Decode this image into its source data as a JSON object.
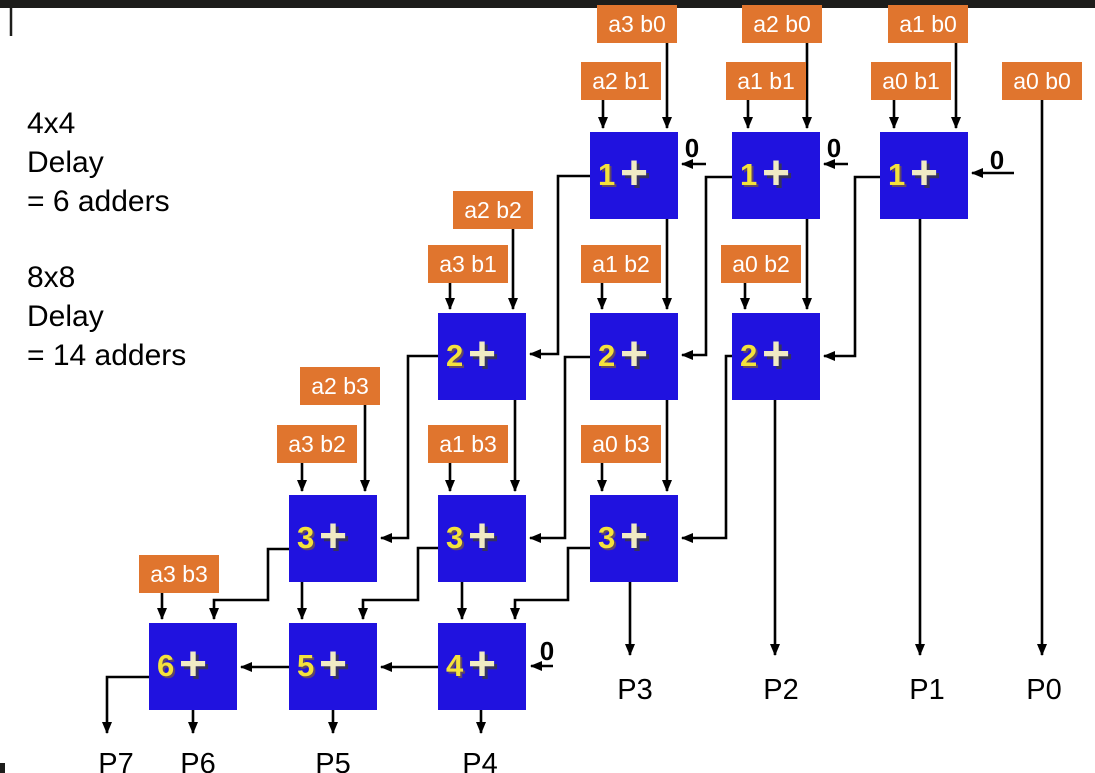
{
  "side_notes": [
    {
      "lines": [
        "4x4",
        "Delay",
        "= 6 adders"
      ]
    },
    {
      "lines": [
        "8x8",
        "Delay",
        "= 14 adders"
      ]
    }
  ],
  "partial_products": [
    {
      "id": "a3b0",
      "label": "a3 b0"
    },
    {
      "id": "a2b0",
      "label": "a2 b0"
    },
    {
      "id": "a1b0",
      "label": "a1 b0"
    },
    {
      "id": "a2b1",
      "label": "a2 b1"
    },
    {
      "id": "a1b1",
      "label": "a1 b1"
    },
    {
      "id": "a0b1",
      "label": "a0 b1"
    },
    {
      "id": "a0b0",
      "label": "a0 b0"
    },
    {
      "id": "a2b2",
      "label": "a2 b2"
    },
    {
      "id": "a3b1",
      "label": "a3 b1"
    },
    {
      "id": "a1b2",
      "label": "a1 b2"
    },
    {
      "id": "a0b2",
      "label": "a0 b2"
    },
    {
      "id": "a2b3",
      "label": "a2 b3"
    },
    {
      "id": "a3b2",
      "label": "a3 b2"
    },
    {
      "id": "a1b3",
      "label": "a1 b3"
    },
    {
      "id": "a0b3",
      "label": "a0 b3"
    },
    {
      "id": "a3b3",
      "label": "a3 b3"
    }
  ],
  "adders": [
    {
      "id": "r1-left",
      "number": "1"
    },
    {
      "id": "r1-mid",
      "number": "1"
    },
    {
      "id": "r1-right",
      "number": "1"
    },
    {
      "id": "r2-left",
      "number": "2"
    },
    {
      "id": "r2-mid",
      "number": "2"
    },
    {
      "id": "r2-right",
      "number": "2"
    },
    {
      "id": "r3-left",
      "number": "3"
    },
    {
      "id": "r3-mid",
      "number": "3"
    },
    {
      "id": "r3-right",
      "number": "3"
    },
    {
      "id": "r4-left",
      "number": "6"
    },
    {
      "id": "r4-mid",
      "number": "5"
    },
    {
      "id": "r4-right",
      "number": "4"
    }
  ],
  "adder_plus_sign": "+",
  "carry_zeros": [
    {
      "id": "cin-row1-left",
      "label": "0"
    },
    {
      "id": "cin-row1-mid",
      "label": "0"
    },
    {
      "id": "cin-row1-right",
      "label": "0"
    },
    {
      "id": "cin-row4",
      "label": "0"
    }
  ],
  "outputs": [
    {
      "id": "P7",
      "label": "P7"
    },
    {
      "id": "P6",
      "label": "P6"
    },
    {
      "id": "P5",
      "label": "P5"
    },
    {
      "id": "P4",
      "label": "P4"
    },
    {
      "id": "P3",
      "label": "P3"
    },
    {
      "id": "P2",
      "label": "P2"
    },
    {
      "id": "P1",
      "label": "P1"
    },
    {
      "id": "P0",
      "label": "P0"
    }
  ],
  "colors": {
    "background": "#ffffff",
    "top_bar": "#1d1d1b",
    "adder_fill": "#2012df",
    "adder_number": "#f4e23c",
    "adder_plus": "#f0ebc4",
    "partial_product_fill": "#e0752e",
    "partial_product_text": "#ffffff",
    "wire": "#000000"
  }
}
